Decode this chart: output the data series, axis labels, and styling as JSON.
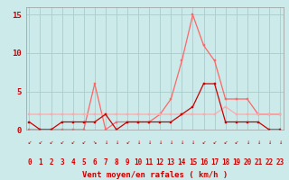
{
  "x": [
    0,
    1,
    2,
    3,
    4,
    5,
    6,
    7,
    8,
    9,
    10,
    11,
    12,
    13,
    14,
    15,
    16,
    17,
    18,
    19,
    20,
    21,
    22,
    23
  ],
  "series1": [
    1,
    0,
    0,
    1,
    1,
    1,
    1,
    2,
    0,
    1,
    1,
    1,
    1,
    1,
    2,
    3,
    6,
    6,
    1,
    1,
    1,
    1,
    0,
    0
  ],
  "series2": [
    2,
    2,
    2,
    2,
    2,
    2,
    2,
    2,
    2,
    2,
    2,
    2,
    2,
    2,
    2,
    2,
    2,
    2,
    3,
    2,
    2,
    2,
    2,
    2
  ],
  "series3": [
    0,
    0,
    0,
    0,
    0,
    0,
    6,
    0,
    1,
    1,
    1,
    1,
    2,
    4,
    9,
    15,
    11,
    9,
    4,
    4,
    4,
    2,
    2,
    2
  ],
  "color1": "#cc0000",
  "color2": "#ffaaaa",
  "color3": "#ff6666",
  "bg_color": "#cceaea",
  "grid_color": "#aacccc",
  "xlabel": "Vent moyen/en rafales ( km/h )",
  "yticks": [
    0,
    5,
    10,
    15
  ],
  "xticks": [
    0,
    1,
    2,
    3,
    4,
    5,
    6,
    7,
    8,
    9,
    10,
    11,
    12,
    13,
    14,
    15,
    16,
    17,
    18,
    19,
    20,
    21,
    22,
    23
  ],
  "ylim": [
    0,
    16
  ],
  "xlim": [
    -0.3,
    23.3
  ],
  "marker_size": 2.0,
  "line_width": 0.9
}
